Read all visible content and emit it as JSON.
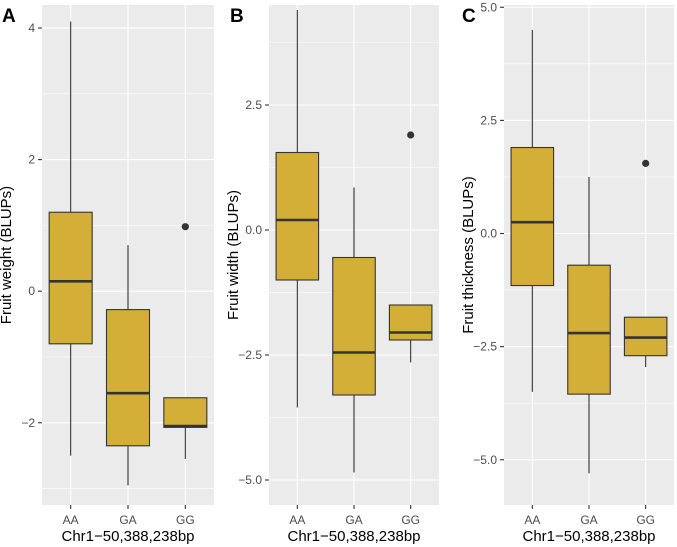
{
  "chart_data": [
    {
      "tag": "A",
      "type": "box",
      "xlabel": "Chr1−50,388,238bp",
      "ylabel": "Fruit weight (BLUPs)",
      "categories": [
        "AA",
        "GA",
        "GG"
      ],
      "ylim": [
        -3.25,
        4.35
      ],
      "yticks": [
        4,
        2,
        0,
        -2
      ],
      "ytick_labels": [
        "4",
        "2",
        "0",
        "−2"
      ],
      "boxes": [
        {
          "lower": -2.5,
          "q1": -0.8,
          "median": 0.15,
          "q3": 1.2,
          "upper": 4.1,
          "outliers": []
        },
        {
          "lower": -2.95,
          "q1": -2.35,
          "median": -1.55,
          "q3": -0.28,
          "upper": 0.7,
          "outliers": []
        },
        {
          "lower": -2.55,
          "q1": -2.07,
          "median": -2.05,
          "q3": -1.62,
          "upper": -1.62,
          "outliers": [
            0.98
          ]
        }
      ]
    },
    {
      "tag": "B",
      "type": "box",
      "xlabel": "Chr1−50,388,238bp",
      "ylabel": "Fruit width (BLUPs)",
      "categories": [
        "AA",
        "GA",
        "GG"
      ],
      "ylim": [
        -5.5,
        4.5
      ],
      "yticks": [
        2.5,
        0,
        -2.5,
        -5
      ],
      "ytick_labels": [
        "2.5",
        "0.0",
        "−2.5",
        "−5.0"
      ],
      "boxes": [
        {
          "lower": -3.55,
          "q1": -1.0,
          "median": 0.2,
          "q3": 1.55,
          "upper": 4.4,
          "outliers": []
        },
        {
          "lower": -4.85,
          "q1": -3.3,
          "median": -2.45,
          "q3": -0.55,
          "upper": 0.85,
          "outliers": []
        },
        {
          "lower": -2.65,
          "q1": -2.2,
          "median": -2.05,
          "q3": -1.5,
          "upper": -1.5,
          "outliers": [
            1.9
          ]
        }
      ]
    },
    {
      "tag": "C",
      "type": "box",
      "xlabel": "Chr1−50,388,238bp",
      "ylabel": "Fruit thickness (BLUPs)",
      "categories": [
        "AA",
        "GA",
        "GG"
      ],
      "ylim": [
        -6.0,
        5.05
      ],
      "yticks": [
        5,
        2.5,
        0,
        -2.5,
        -5
      ],
      "ytick_labels": [
        "5.0",
        "2.5",
        "0.0",
        "−2.5",
        "−5.0"
      ],
      "boxes": [
        {
          "lower": -3.5,
          "q1": -1.15,
          "median": 0.25,
          "q3": 1.9,
          "upper": 4.5,
          "outliers": []
        },
        {
          "lower": -5.3,
          "q1": -3.55,
          "median": -2.2,
          "q3": -0.7,
          "upper": 1.25,
          "outliers": []
        },
        {
          "lower": -2.95,
          "q1": -2.7,
          "median": -2.3,
          "q3": -1.85,
          "upper": -1.85,
          "outliers": [
            1.55
          ]
        }
      ]
    }
  ]
}
